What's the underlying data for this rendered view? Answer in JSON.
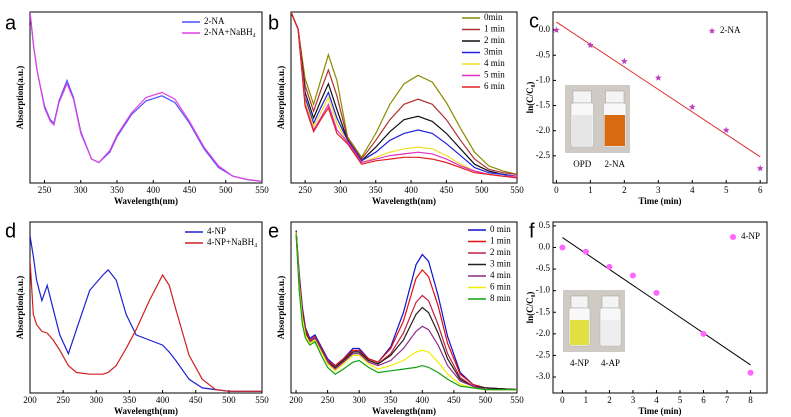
{
  "chart_data": [
    {
      "type": "line",
      "panel_label": "a",
      "xlabel": "Wavelength(nm)",
      "ylabel": "Absorption(a.u.)",
      "xlim": [
        230,
        550
      ],
      "xticks": [
        250,
        300,
        350,
        400,
        450,
        500,
        550
      ],
      "ylim": [
        0,
        100
      ],
      "legend": "upper right",
      "x": [
        230,
        235,
        240,
        250,
        258,
        263,
        270,
        281,
        290,
        300,
        315,
        325,
        340,
        350,
        370,
        390,
        412,
        430,
        450,
        470,
        490,
        510,
        530,
        550
      ],
      "series": [
        {
          "name": "2-NA",
          "color": "#5050ff",
          "values": [
            100,
            80,
            65,
            45,
            37,
            35,
            48,
            60,
            50,
            30,
            14,
            12,
            18,
            27,
            40,
            48,
            51,
            47,
            35,
            20,
            9,
            4,
            2,
            1
          ]
        },
        {
          "name": "2-NA+NaBH₄",
          "color": "#e040e0",
          "values": [
            100,
            80,
            65,
            44,
            36,
            34,
            47,
            58,
            49,
            29,
            14,
            12,
            19,
            28,
            41,
            50,
            53,
            49,
            36,
            21,
            10,
            4,
            2,
            1
          ]
        }
      ]
    },
    {
      "type": "line",
      "panel_label": "b",
      "xlabel": "Wavelength(nm)",
      "ylabel": "Absorption(a.u.)",
      "xlim": [
        230,
        550
      ],
      "xticks": [
        250,
        300,
        350,
        400,
        450,
        500,
        550
      ],
      "ylim": [
        0,
        100
      ],
      "legend": "upper right",
      "x": [
        230,
        240,
        250,
        262,
        272,
        283,
        295,
        310,
        330,
        350,
        370,
        390,
        410,
        430,
        450,
        470,
        490,
        510,
        530,
        550
      ],
      "series": [
        {
          "name": "0min",
          "color": "#8b8b00",
          "values": [
            100,
            90,
            61,
            46,
            60,
            75,
            60,
            27,
            15,
            29,
            46,
            58,
            63,
            59,
            47,
            32,
            18,
            10,
            7,
            5
          ]
        },
        {
          "name": "1 min",
          "color": "#b03030",
          "values": [
            100,
            90,
            57,
            42,
            54,
            66,
            51,
            26,
            14,
            25,
            37,
            46,
            49,
            46,
            37,
            25,
            14,
            8,
            6,
            5
          ]
        },
        {
          "name": "2 min",
          "color": "#111111",
          "values": [
            100,
            90,
            53,
            38,
            48,
            58,
            43,
            25,
            13,
            21,
            30,
            37,
            39,
            36,
            29,
            20,
            11,
            7,
            5,
            4
          ]
        },
        {
          "name": "3min",
          "color": "#2020e0",
          "values": [
            100,
            90,
            50,
            35,
            44,
            53,
            38,
            25,
            13,
            18,
            25,
            29,
            31,
            29,
            23,
            16,
            9,
            6,
            5,
            4
          ]
        },
        {
          "name": "4 min",
          "color": "#f0e020",
          "values": [
            100,
            90,
            48,
            33,
            41,
            50,
            35,
            24,
            12,
            15,
            18,
            20,
            21,
            20,
            16,
            11,
            7,
            5,
            4,
            4
          ]
        },
        {
          "name": "5 min",
          "color": "#e030c0",
          "values": [
            100,
            90,
            46,
            31,
            38,
            46,
            31,
            24,
            12,
            14,
            16,
            17,
            18,
            17,
            14,
            10,
            7,
            5,
            4,
            4
          ]
        },
        {
          "name": "6 min",
          "color": "#e02020",
          "values": [
            100,
            90,
            45,
            30,
            37,
            44,
            29,
            23,
            11,
            13,
            14,
            15,
            15,
            14,
            12,
            9,
            6,
            5,
            4,
            3
          ]
        }
      ]
    },
    {
      "type": "scatter",
      "panel_label": "c",
      "xlabel": "Time (min)",
      "ylabel": "ln(C/C₀)",
      "xlim": [
        -0.1,
        6.2
      ],
      "xticks": [
        0,
        1,
        2,
        3,
        4,
        5,
        6
      ],
      "ylim": [
        -3.04,
        0.36
      ],
      "yticks": [
        {
          "value": 0,
          "label": "0.0"
        },
        -0.5,
        {
          "value": -1,
          "label": "-1.0"
        },
        -1.5,
        {
          "value": -2,
          "label": "-2.0"
        },
        -2.5
      ],
      "legend": "upper right",
      "x": [
        0,
        1,
        2,
        3,
        4,
        5,
        6
      ],
      "series": [
        {
          "name": "2-NA",
          "color": "#c040c0",
          "values": [
            0.0,
            -0.3,
            -0.62,
            -0.95,
            -1.53,
            -1.99,
            -2.75
          ]
        }
      ],
      "fit_line": {
        "x": [
          0,
          6
        ],
        "values": [
          0.16,
          -2.52
        ],
        "color": "#e03030"
      },
      "inset_labels": [
        "OPD",
        "2-NA"
      ]
    },
    {
      "type": "line",
      "panel_label": "d",
      "xlabel": "Wavelength(nm)",
      "ylabel": "Absorption(a.u.)",
      "xlim": [
        200,
        550
      ],
      "xticks": [
        200,
        250,
        300,
        350,
        400,
        450,
        500,
        550
      ],
      "ylim": [
        0,
        100
      ],
      "legend": "upper right",
      "x": [
        200,
        205,
        210,
        218,
        226,
        235,
        245,
        258,
        270,
        290,
        310,
        318,
        330,
        345,
        360,
        380,
        400,
        410,
        420,
        440,
        460,
        480,
        500,
        550
      ],
      "series": [
        {
          "name": "4-NP",
          "color": "#2020d0",
          "values": [
            92,
            80,
            66,
            54,
            63,
            49,
            34,
            23,
            37,
            60,
            69,
            72,
            66,
            46,
            34,
            31,
            28,
            24,
            19,
            8,
            3,
            2,
            1,
            1
          ]
        },
        {
          "name": "4-NP+NaBH₄",
          "color": "#d02020",
          "values": [
            78,
            46,
            40,
            36,
            35,
            31,
            25,
            16,
            12,
            11,
            11,
            12,
            16,
            26,
            37,
            54,
            69,
            63,
            49,
            22,
            8,
            2,
            1,
            1
          ]
        }
      ]
    },
    {
      "type": "line",
      "panel_label": "e",
      "xlabel": "Wavelength(nm)",
      "ylabel": "Absorption(a.u.)",
      "xlim": [
        192,
        550
      ],
      "xticks": [
        200,
        250,
        300,
        350,
        400,
        450,
        500,
        550
      ],
      "ylim": [
        0,
        100
      ],
      "legend": "upper right",
      "x": [
        200,
        205,
        210,
        215,
        222,
        230,
        240,
        250,
        262,
        275,
        290,
        300,
        315,
        330,
        350,
        370,
        390,
        400,
        410,
        425,
        440,
        460,
        480,
        500,
        550
      ],
      "series": [
        {
          "name": "0 min",
          "color": "#1010d0",
          "values": [
            95,
            70,
            50,
            38,
            32,
            34,
            27,
            20,
            16,
            20,
            26,
            26,
            20,
            18,
            27,
            47,
            75,
            81,
            77,
            57,
            33,
            12,
            5,
            3,
            2
          ]
        },
        {
          "name": "1 min",
          "color": "#e01010",
          "values": [
            95,
            68,
            48,
            37,
            31,
            33,
            26,
            19,
            16,
            20,
            25,
            25,
            20,
            18,
            26,
            42,
            67,
            72,
            68,
            51,
            29,
            11,
            5,
            3,
            2
          ]
        },
        {
          "name": "2 min",
          "color": "#c02040",
          "values": [
            95,
            66,
            47,
            36,
            31,
            33,
            26,
            19,
            15,
            19,
            24,
            25,
            19,
            17,
            23,
            35,
            53,
            57,
            54,
            40,
            23,
            9,
            4,
            3,
            2
          ]
        },
        {
          "name": "3 min",
          "color": "#222222",
          "values": [
            95,
            65,
            46,
            35,
            30,
            32,
            25,
            18,
            15,
            19,
            24,
            24,
            19,
            17,
            22,
            31,
            46,
            50,
            47,
            35,
            20,
            8,
            4,
            3,
            2
          ]
        },
        {
          "name": "4 min",
          "color": "#8a2a8a",
          "values": [
            94,
            64,
            45,
            34,
            30,
            32,
            25,
            18,
            14,
            18,
            23,
            23,
            18,
            16,
            19,
            26,
            36,
            39,
            37,
            28,
            16,
            7,
            4,
            2,
            2
          ]
        },
        {
          "name": "6 min",
          "color": "#f0f000",
          "values": [
            94,
            63,
            44,
            34,
            29,
            31,
            24,
            17,
            13,
            17,
            22,
            22,
            17,
            14,
            16,
            19,
            24,
            25,
            24,
            18,
            11,
            5,
            3,
            2,
            2
          ]
        },
        {
          "name": "8 min",
          "color": "#10a010",
          "values": [
            93,
            60,
            40,
            32,
            28,
            30,
            22,
            15,
            11,
            14,
            18,
            19,
            15,
            12,
            13,
            14,
            15,
            16,
            15,
            12,
            8,
            4,
            3,
            2,
            2
          ]
        }
      ]
    },
    {
      "type": "scatter",
      "panel_label": "f",
      "xlabel": "Time (min)",
      "ylabel": "ln(C/C₀)",
      "xlim": [
        -0.4,
        8.7
      ],
      "xticks": [
        0,
        1,
        2,
        3,
        4,
        5,
        6,
        7,
        8
      ],
      "ylim": [
        -3.37,
        0.59
      ],
      "yticks": [
        0.5,
        {
          "value": 0,
          "label": "0.0"
        },
        -0.5,
        {
          "value": -1,
          "label": "-1.0"
        },
        -1.5,
        {
          "value": -2,
          "label": "-2.0"
        },
        -2.5,
        {
          "value": -3,
          "label": "-3.0"
        }
      ],
      "legend": "upper right",
      "x": [
        0,
        1,
        2,
        3,
        4,
        6,
        8
      ],
      "series": [
        {
          "name": "4-NP",
          "color": "#ff66ff",
          "values": [
            0.0,
            -0.1,
            -0.45,
            -0.65,
            -1.05,
            -2.0,
            -2.9
          ]
        }
      ],
      "fit_line": {
        "x": [
          0,
          8
        ],
        "values": [
          0.23,
          -2.72
        ],
        "color": "#000000"
      },
      "inset_labels": [
        "4-NP",
        "4-AP"
      ]
    }
  ]
}
